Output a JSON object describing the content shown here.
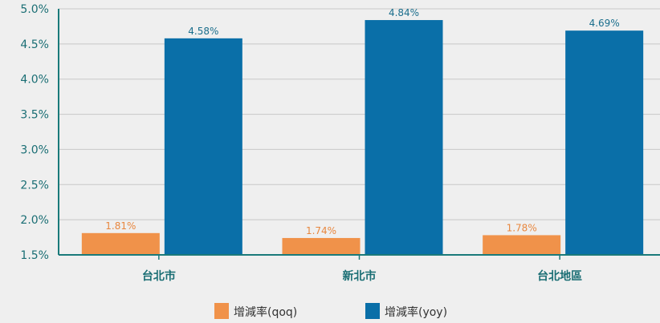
{
  "chart_data": {
    "type": "bar",
    "title": "",
    "xlabel": "",
    "ylabel": "",
    "categories": [
      "台北市",
      "新北市",
      "台北地區"
    ],
    "series": [
      {
        "name": "增減率(qoq)",
        "color": "#f0924a",
        "label_color": "#e8873f",
        "values": [
          1.81,
          1.74,
          1.78
        ],
        "labels": [
          "1.81%",
          "1.74%",
          "1.78%"
        ]
      },
      {
        "name": "增減率(yoy)",
        "color": "#0a6fa8",
        "label_color": "#1a6e8c",
        "values": [
          4.58,
          4.84,
          4.69
        ],
        "labels": [
          "4.58%",
          "4.84%",
          "4.69%"
        ]
      }
    ],
    "ylim": [
      1.5,
      5.0
    ],
    "yticks": [
      1.5,
      2.0,
      2.5,
      3.0,
      3.5,
      4.0,
      4.5,
      5.0
    ],
    "ytick_labels": [
      "1.5%",
      "2.0%",
      "2.5%",
      "3.0%",
      "3.5%",
      "4.0%",
      "4.5%",
      "5.0%"
    ],
    "grid": true,
    "legend_position": "bottom-center",
    "axis_color": "#1a7a7a",
    "grid_color": "#c8c8c8"
  }
}
